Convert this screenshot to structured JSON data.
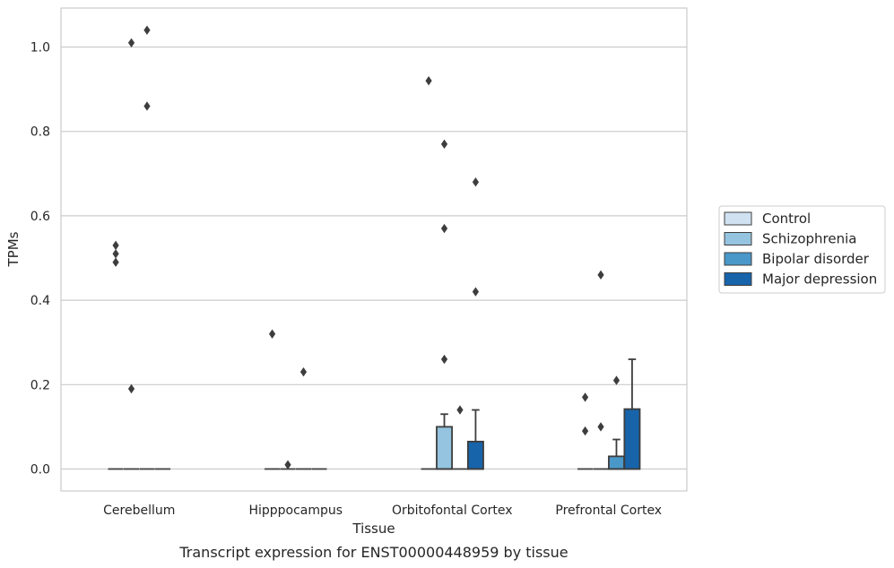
{
  "chart_data": {
    "type": "box",
    "xlabel": "Tissue",
    "ylabel": "TPMs",
    "caption": "Transcript expression for ENST00000448959 by tissue",
    "ylim": [
      -0.05,
      1.09
    ],
    "yticks": [
      "0.0",
      "0.2",
      "0.4",
      "0.6",
      "0.8",
      "1.0"
    ],
    "grid": true,
    "legend_position": "right",
    "categories": [
      "Cerebellum",
      "Hipppocampus",
      "Orbitofontal Cortex",
      "Prefrontal Cortex"
    ],
    "series": [
      {
        "name": "Control",
        "color": "#d0e1f2",
        "boxes": [
          {
            "q1": 0,
            "median": 0,
            "q3": 0,
            "whisker_low": 0,
            "whisker_high": 0,
            "outliers": [
              0.49,
              0.51,
              0.53
            ]
          },
          {
            "q1": 0,
            "median": 0,
            "q3": 0,
            "whisker_low": 0,
            "whisker_high": 0,
            "outliers": [
              0.32
            ]
          },
          {
            "q1": 0,
            "median": 0,
            "q3": 0,
            "whisker_low": 0,
            "whisker_high": 0,
            "outliers": [
              0.92
            ]
          },
          {
            "q1": 0,
            "median": 0,
            "q3": 0,
            "whisker_low": 0,
            "whisker_high": 0,
            "outliers": [
              0.09,
              0.17
            ]
          }
        ]
      },
      {
        "name": "Schizophrenia",
        "color": "#94c4df",
        "boxes": [
          {
            "q1": 0,
            "median": 0,
            "q3": 0,
            "whisker_low": 0,
            "whisker_high": 0,
            "outliers": [
              0.19,
              1.01
            ]
          },
          {
            "q1": 0,
            "median": 0,
            "q3": 0,
            "whisker_low": 0,
            "whisker_high": 0,
            "outliers": [
              0.01
            ]
          },
          {
            "q1": 0,
            "median": 0,
            "q3": 0.1,
            "whisker_low": 0,
            "whisker_high": 0.13,
            "outliers": [
              0.26,
              0.57,
              0.77
            ]
          },
          {
            "q1": 0,
            "median": 0,
            "q3": 0,
            "whisker_low": 0,
            "whisker_high": 0,
            "outliers": [
              0.1,
              0.46
            ]
          }
        ]
      },
      {
        "name": "Bipolar disorder",
        "color": "#4a98c9",
        "boxes": [
          {
            "q1": 0,
            "median": 0,
            "q3": 0,
            "whisker_low": 0,
            "whisker_high": 0,
            "outliers": [
              0.86,
              1.04
            ]
          },
          {
            "q1": 0,
            "median": 0,
            "q3": 0,
            "whisker_low": 0,
            "whisker_high": 0,
            "outliers": [
              0.23
            ]
          },
          {
            "q1": 0,
            "median": 0,
            "q3": 0,
            "whisker_low": 0,
            "whisker_high": 0,
            "outliers": [
              0.14
            ]
          },
          {
            "q1": 0,
            "median": 0,
            "q3": 0.03,
            "whisker_low": 0,
            "whisker_high": 0.07,
            "outliers": [
              0.21
            ]
          }
        ]
      },
      {
        "name": "Major depression",
        "color": "#1764ab",
        "boxes": [
          {
            "q1": 0,
            "median": 0,
            "q3": 0,
            "whisker_low": 0,
            "whisker_high": 0,
            "outliers": []
          },
          {
            "q1": 0,
            "median": 0,
            "q3": 0,
            "whisker_low": 0,
            "whisker_high": 0,
            "outliers": []
          },
          {
            "q1": 0,
            "median": 0,
            "q3": 0.065,
            "whisker_low": 0,
            "whisker_high": 0.14,
            "outliers": [
              0.42,
              0.68
            ]
          },
          {
            "q1": 0,
            "median": 0,
            "q3": 0.142,
            "whisker_low": 0,
            "whisker_high": 0.26,
            "outliers": []
          }
        ]
      }
    ]
  }
}
